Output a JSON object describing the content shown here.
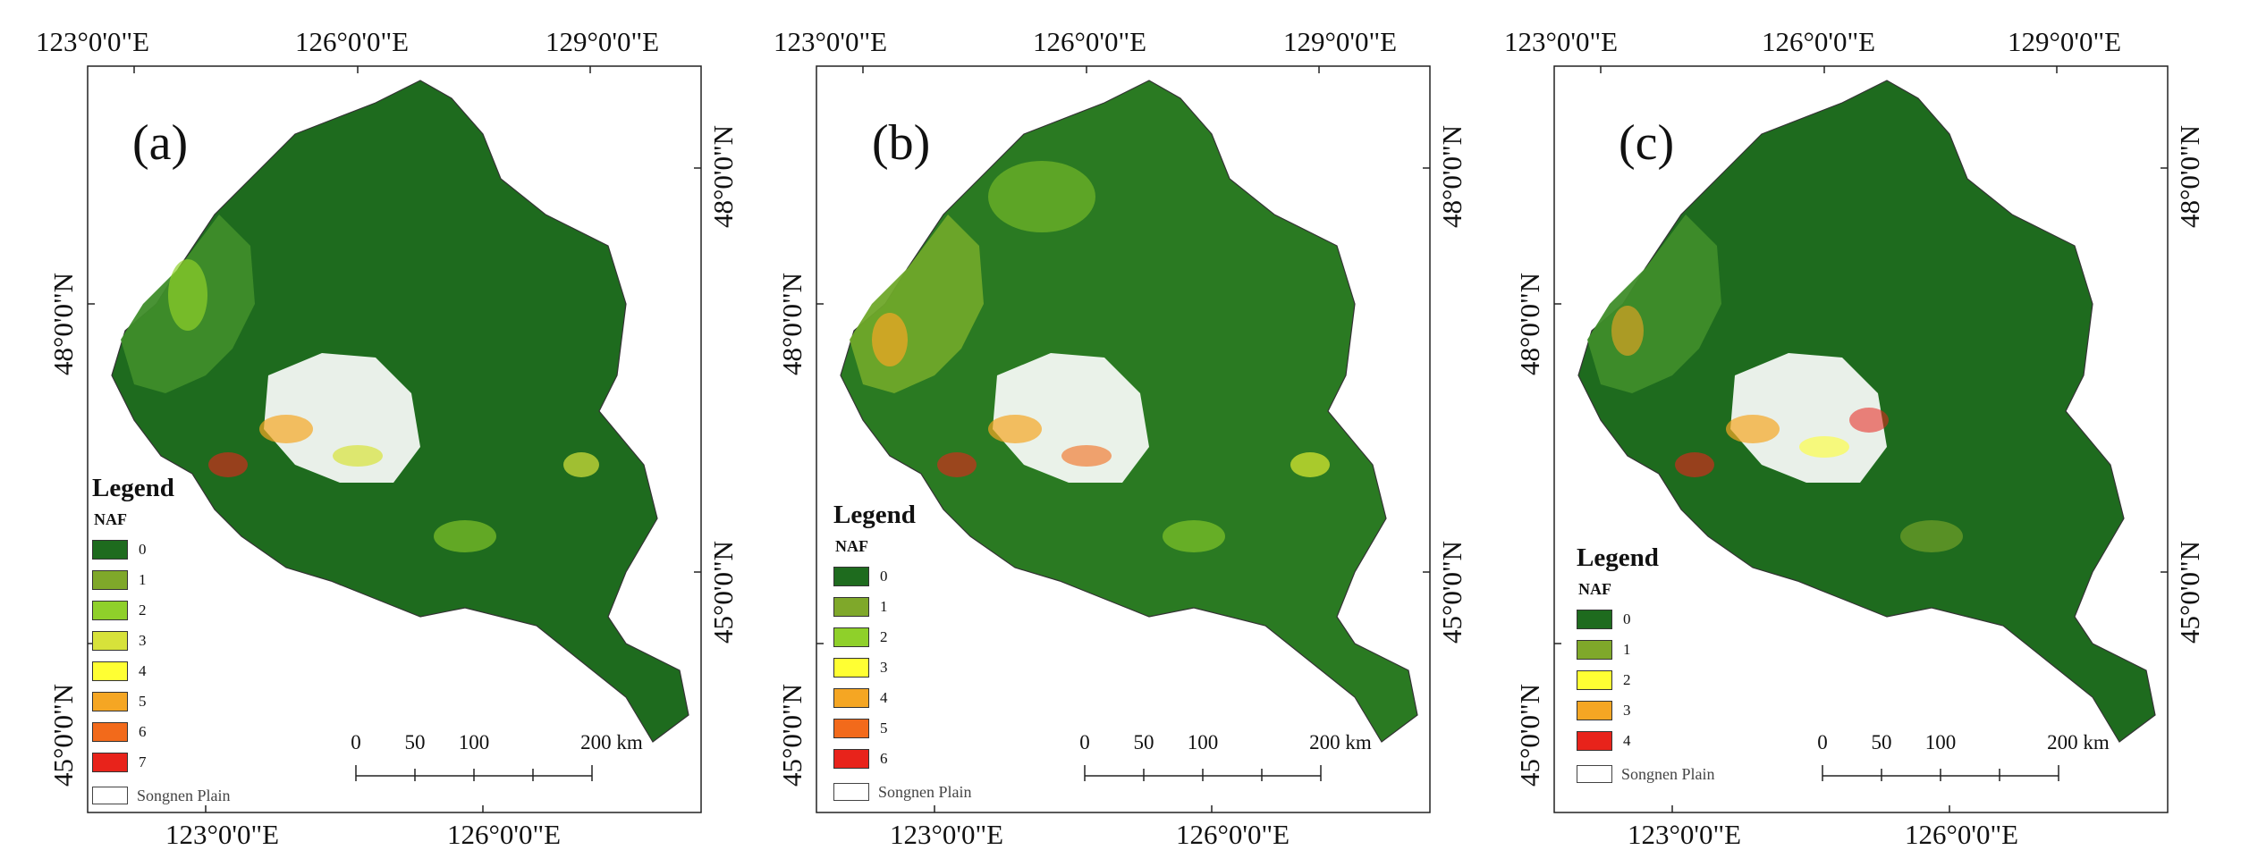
{
  "panels": [
    {
      "label": "(a)",
      "legend": {
        "title": "Legend",
        "subtitle": "NAF",
        "classes": [
          {
            "value": "0",
            "color": "#1e6b1e"
          },
          {
            "value": "1",
            "color": "#7fa82a"
          },
          {
            "value": "2",
            "color": "#8fd02a"
          },
          {
            "value": "3",
            "color": "#d7e23a"
          },
          {
            "value": "4",
            "color": "#ffff33"
          },
          {
            "value": "5",
            "color": "#f5a623"
          },
          {
            "value": "6",
            "color": "#f26a1b"
          },
          {
            "value": "7",
            "color": "#e8231b"
          }
        ],
        "boundary_label": "Songnen Plain"
      }
    },
    {
      "label": "(b)",
      "legend": {
        "title": "Legend",
        "subtitle": "NAF",
        "classes": [
          {
            "value": "0",
            "color": "#1e6b1e"
          },
          {
            "value": "1",
            "color": "#7fa82a"
          },
          {
            "value": "2",
            "color": "#8fd02a"
          },
          {
            "value": "3",
            "color": "#ffff33"
          },
          {
            "value": "4",
            "color": "#f5a623"
          },
          {
            "value": "5",
            "color": "#f26a1b"
          },
          {
            "value": "6",
            "color": "#e8231b"
          }
        ],
        "boundary_label": "Songnen Plain"
      }
    },
    {
      "label": "(c)",
      "legend": {
        "title": "Legend",
        "subtitle": "NAF",
        "classes": [
          {
            "value": "0",
            "color": "#1e6b1e"
          },
          {
            "value": "1",
            "color": "#7fa82a"
          },
          {
            "value": "2",
            "color": "#ffff33"
          },
          {
            "value": "3",
            "color": "#f5a623"
          },
          {
            "value": "4",
            "color": "#e8231b"
          }
        ],
        "boundary_label": "Songnen Plain"
      }
    }
  ],
  "graticule": {
    "top": [
      "123°0'0\"E",
      "126°0'0\"E",
      "129°0'0\"E"
    ],
    "bottom": [
      "123°0'0\"E",
      "126°0'0\"E"
    ],
    "left": [
      "48°0'0\"N",
      "45°0'0\"N"
    ],
    "right": [
      "48°0'0\"N",
      "45°0'0\"N"
    ]
  },
  "scale_bar": {
    "ticks": [
      "0",
      "50",
      "100",
      "200 km"
    ]
  }
}
